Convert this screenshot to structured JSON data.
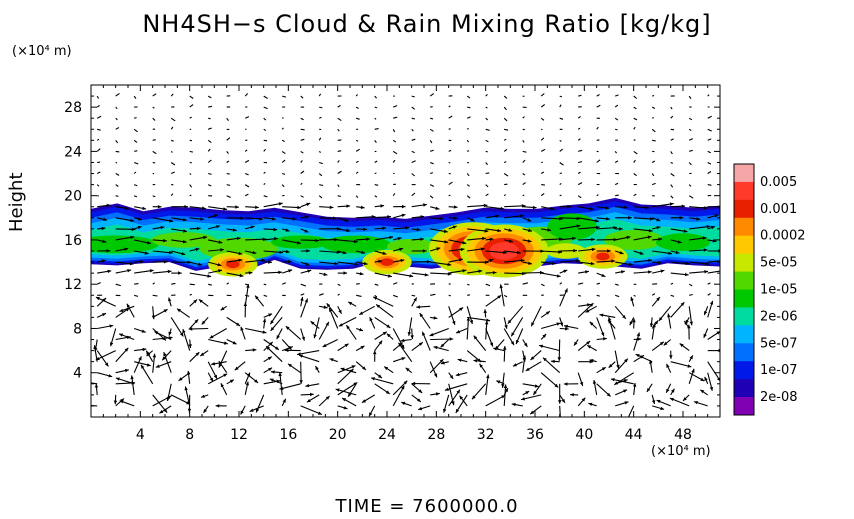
{
  "chart_data": {
    "type": "heatmap",
    "title": "NH4SH−s Cloud & Rain Mixing Ratio [kg/kg]",
    "ylabel": "Height",
    "x_unit": "(×10⁴ m)",
    "y_unit": "(×10⁴ m)",
    "x_ticks": [
      4,
      8,
      12,
      16,
      20,
      24,
      28,
      32,
      36,
      40,
      44,
      48
    ],
    "y_ticks": [
      4,
      8,
      12,
      16,
      20,
      24,
      28
    ],
    "xlim": [
      0,
      51
    ],
    "ylim": [
      0,
      30
    ],
    "colorbar": {
      "labels": [
        "0.005",
        "0.001",
        "0.0002",
        "5e-05",
        "1e-05",
        "2e-06",
        "5e-07",
        "1e-07",
        "2e-08"
      ],
      "colors": [
        "#f6a6a6",
        "#ff3a2a",
        "#e82000",
        "#ff8a00",
        "#ffc800",
        "#c8e800",
        "#50d800",
        "#00c800",
        "#00dca0",
        "#00b4ff",
        "#0070ff",
        "#0018e8",
        "#2000b4",
        "#8000b4"
      ]
    },
    "cloud_layer": {
      "top": [
        18.8,
        19.3,
        18.6,
        19.0,
        18.9,
        18.7,
        18.6,
        18.9,
        18.5,
        18.1,
        18.0,
        18.1,
        17.9,
        18.2,
        18.5,
        18.9,
        18.8,
        18.8,
        19.1,
        19.3,
        19.8,
        19.2,
        19.1,
        18.9,
        19.1
      ],
      "bottom": [
        13.8,
        13.7,
        13.9,
        14.0,
        13.2,
        13.6,
        13.3,
        14.2,
        13.4,
        13.3,
        13.4,
        14.0,
        13.6,
        13.4,
        13.7,
        13.5,
        13.1,
        13.6,
        13.9,
        13.8,
        13.6,
        13.4,
        13.9,
        13.7,
        13.6
      ]
    },
    "hotspots": [
      {
        "x": 11.5,
        "y": 13.8,
        "level": "0.0002"
      },
      {
        "x": 24.0,
        "y": 14.0,
        "level": "0.0002"
      },
      {
        "x": 31.0,
        "y": 15.2,
        "level": "0.001"
      },
      {
        "x": 33.5,
        "y": 15.0,
        "level": "0.001"
      },
      {
        "x": 41.5,
        "y": 14.5,
        "level": "0.0002"
      }
    ],
    "time_label": "TIME  =  7600000.0"
  }
}
